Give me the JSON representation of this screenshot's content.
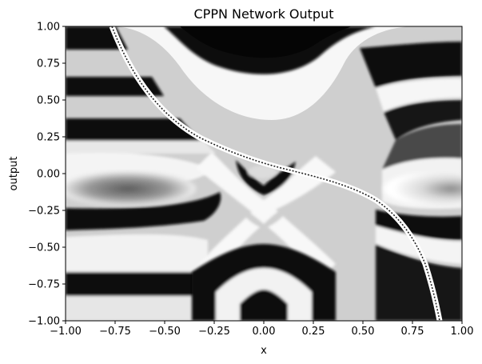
{
  "chart_data": {
    "type": "heatmap",
    "title": "CPPN Network Output",
    "xlabel": "x",
    "ylabel": "output",
    "xlim": [
      -1.0,
      1.0
    ],
    "ylim": [
      -1.0,
      1.0
    ],
    "x_ticks": [
      "−1.00",
      "−0.75",
      "−0.50",
      "−0.25",
      "0.00",
      "0.25",
      "0.50",
      "0.75",
      "1.00"
    ],
    "y_ticks": [
      "1.00",
      "0.75",
      "0.50",
      "0.25",
      "0.00",
      "−0.25",
      "−0.50",
      "−0.75",
      "−1.00"
    ],
    "x_tick_values": [
      -1.0,
      -0.75,
      -0.5,
      -0.25,
      0.0,
      0.25,
      0.5,
      0.75,
      1.0
    ],
    "y_tick_values": [
      1.0,
      0.75,
      0.5,
      0.25,
      0.0,
      -0.25,
      -0.5,
      -0.75,
      -1.0
    ],
    "colormap": "grayscale",
    "grid": false,
    "legend": "none"
  }
}
